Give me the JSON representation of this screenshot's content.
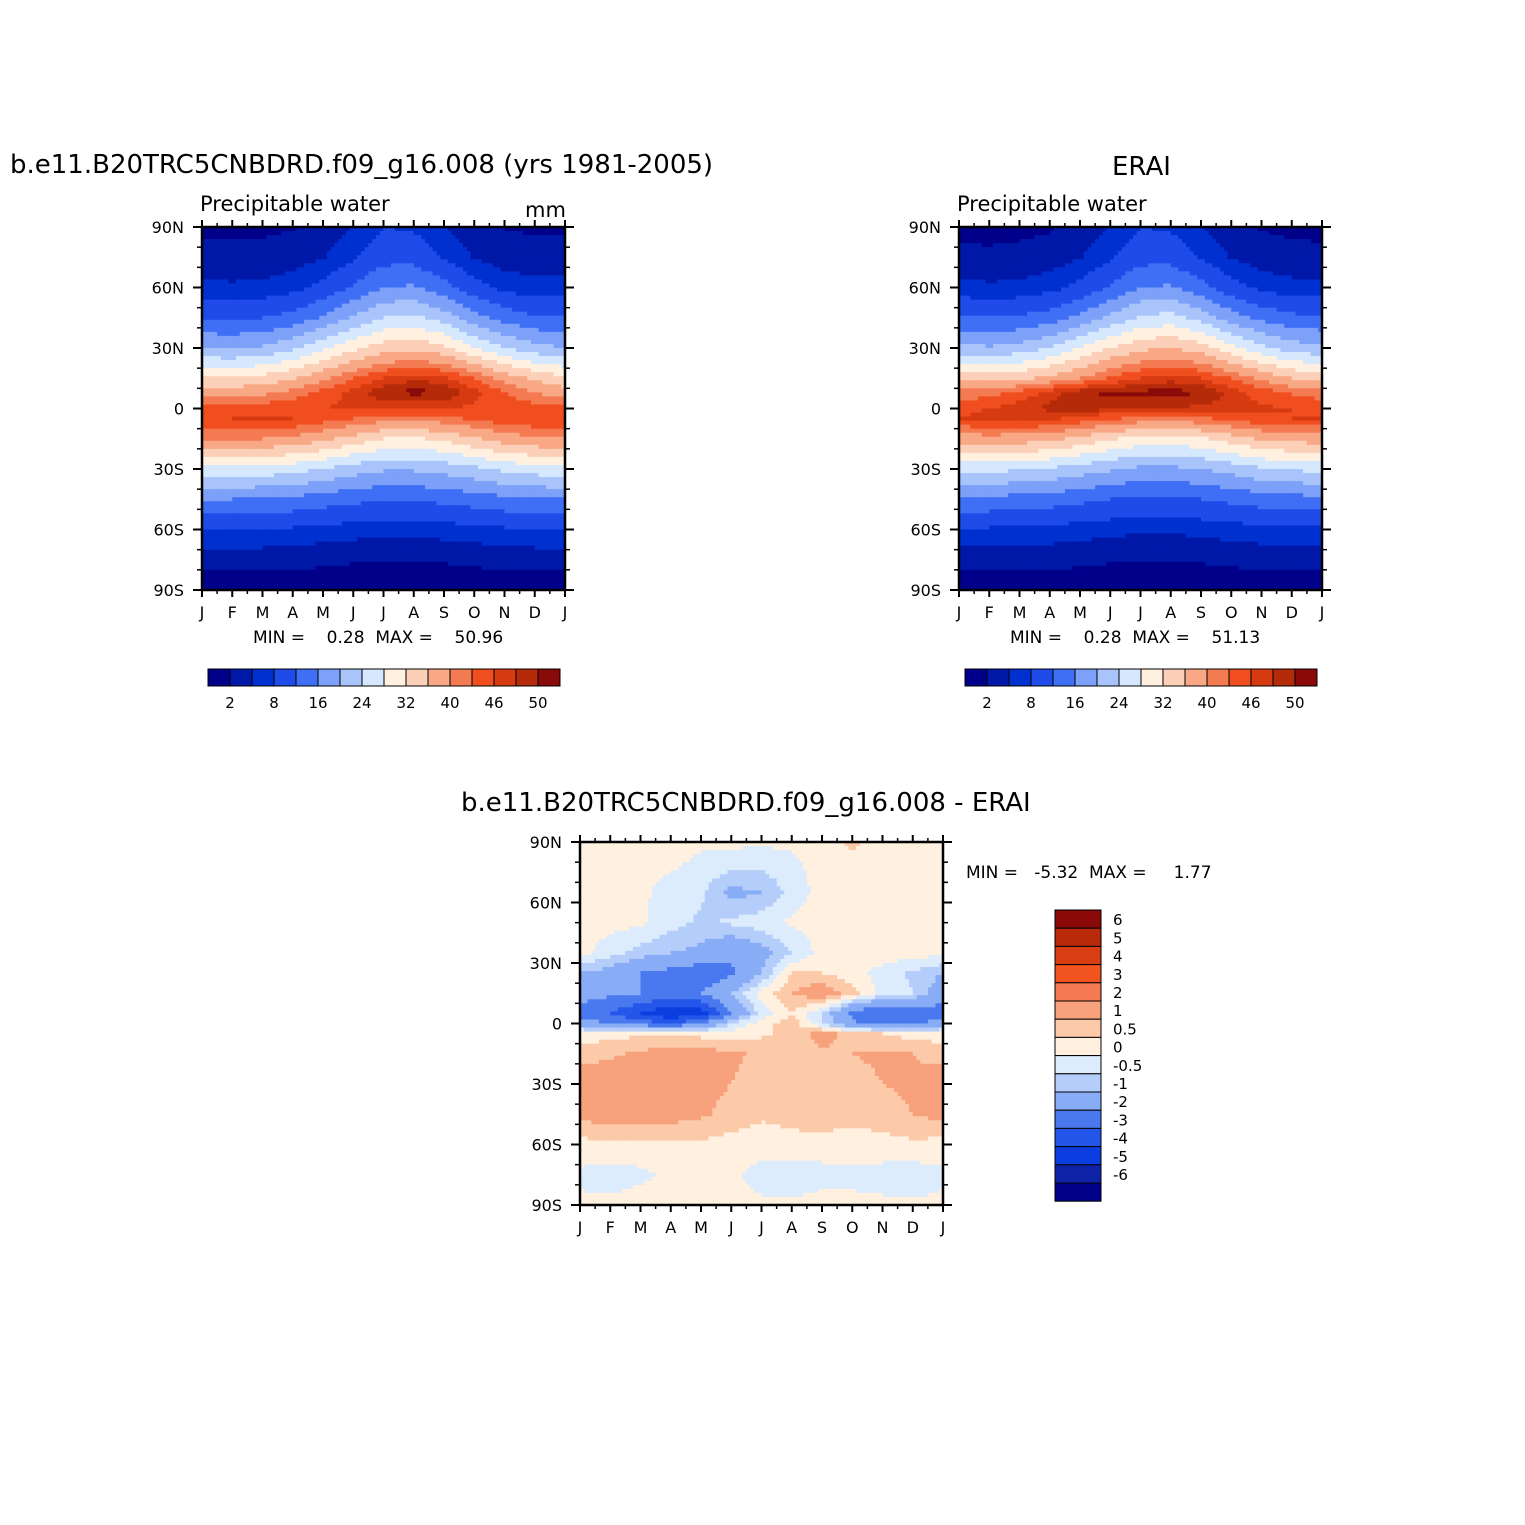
{
  "panels": {
    "model": {
      "title": "b.e11.B20TRC5CNBDRD.f09_g16.008 (yrs 1981-2005)",
      "left_label": "Precipitable  water",
      "right_label": "mm",
      "stats": "MIN =    0.28  MAX =    50.96"
    },
    "obs": {
      "title": "ERAI",
      "left_label": "Precipitable  water",
      "stats": "MIN =    0.28  MAX =    51.13"
    },
    "diff": {
      "title": "b.e11.B20TRC5CNBDRD.f09_g16.008 - ERAI",
      "stats": "MIN =   -5.32  MAX =     1.77"
    }
  },
  "chart_data": [
    {
      "type": "heatmap",
      "title": "b.e11.B20TRC5CNBDRD.f09_g16.008 (yrs 1981-2005)",
      "subtitle": "Precipitable  water",
      "units": "mm",
      "x_ticks": [
        "J",
        "F",
        "M",
        "A",
        "M",
        "J",
        "J",
        "A",
        "S",
        "O",
        "N",
        "D",
        "J"
      ],
      "y_ticks": [
        "90N",
        "60N",
        "30N",
        "0",
        "30S",
        "60S",
        "90S"
      ],
      "ylim": [
        -90,
        90
      ],
      "min": 0.28,
      "max": 50.96,
      "levels": [
        2,
        5,
        8,
        12,
        16,
        20,
        24,
        28,
        32,
        36,
        40,
        43,
        46,
        48,
        50
      ],
      "colorbar_labels": [
        "2",
        "8",
        "16",
        "24",
        "32",
        "40",
        "46",
        "50"
      ],
      "z_by_lat": [
        {
          "lat": -90,
          "values": [
            0.5,
            0.5,
            0.5,
            0.5,
            0.4,
            0.4,
            0.3,
            0.3,
            0.4,
            0.4,
            0.5,
            0.5,
            0.5
          ]
        },
        {
          "lat": -75,
          "values": [
            3,
            3,
            3,
            2.8,
            2.5,
            2.2,
            2,
            2,
            2.2,
            2.5,
            2.8,
            3,
            3
          ]
        },
        {
          "lat": -60,
          "values": [
            8,
            8,
            8,
            7.5,
            7,
            6.5,
            6,
            6,
            6.5,
            7,
            7.5,
            8,
            8
          ]
        },
        {
          "lat": -45,
          "values": [
            16,
            16,
            15.5,
            15,
            14,
            13,
            12.5,
            12.5,
            13,
            14,
            15,
            15.5,
            16
          ]
        },
        {
          "lat": -30,
          "values": [
            27,
            27,
            26.5,
            25.5,
            24,
            22,
            20.5,
            20.5,
            21.5,
            23,
            25,
            26,
            27
          ]
        },
        {
          "lat": -15,
          "values": [
            40,
            40.5,
            40,
            39,
            37,
            34.5,
            32,
            31.5,
            33,
            35.5,
            38,
            39.5,
            40
          ]
        },
        {
          "lat": -5,
          "values": [
            45.5,
            46,
            46.5,
            46,
            44.5,
            43,
            41.5,
            41,
            42,
            43.5,
            45,
            45.5,
            45.5
          ]
        },
        {
          "lat": 0,
          "values": [
            44,
            44.5,
            45,
            45.5,
            46,
            46.5,
            46.5,
            46,
            46,
            45.5,
            45,
            44.5,
            44
          ]
        },
        {
          "lat": 8,
          "values": [
            38,
            38,
            39,
            41,
            44,
            47,
            49.5,
            50.8,
            50,
            47,
            43,
            40,
            38
          ]
        },
        {
          "lat": 15,
          "values": [
            33,
            32.5,
            33.5,
            35.5,
            39,
            43,
            46,
            47.5,
            46.5,
            43,
            38.5,
            35,
            33
          ]
        },
        {
          "lat": 30,
          "values": [
            20,
            19.5,
            20.5,
            23,
            27,
            31,
            34,
            35,
            33,
            28,
            24,
            21.5,
            20
          ]
        },
        {
          "lat": 45,
          "values": [
            12,
            11.5,
            12,
            13.5,
            16.5,
            20.5,
            24,
            25,
            22,
            17.5,
            14.5,
            12.5,
            12
          ]
        },
        {
          "lat": 60,
          "values": [
            6,
            5.5,
            5.8,
            6.8,
            9,
            12.5,
            16,
            16.5,
            13.5,
            9.5,
            7,
            6,
            6
          ]
        },
        {
          "lat": 75,
          "values": [
            3,
            2.8,
            2.9,
            3.4,
            4.8,
            7.5,
            10.5,
            10.5,
            7.5,
            4.8,
            3.4,
            3,
            3
          ]
        },
        {
          "lat": 90,
          "values": [
            1.5,
            1.4,
            1.5,
            1.8,
            3,
            5,
            8,
            7.5,
            5,
            3,
            1.9,
            1.6,
            1.5
          ]
        }
      ]
    },
    {
      "type": "heatmap",
      "title": "ERAI",
      "subtitle": "Precipitable  water",
      "x_ticks": [
        "J",
        "F",
        "M",
        "A",
        "M",
        "J",
        "J",
        "A",
        "S",
        "O",
        "N",
        "D",
        "J"
      ],
      "y_ticks": [
        "90N",
        "60N",
        "30N",
        "0",
        "30S",
        "60S",
        "90S"
      ],
      "ylim": [
        -90,
        90
      ],
      "min": 0.28,
      "max": 51.13,
      "levels": [
        2,
        5,
        8,
        12,
        16,
        20,
        24,
        28,
        32,
        36,
        40,
        43,
        46,
        48,
        50
      ],
      "colorbar_labels": [
        "2",
        "8",
        "16",
        "24",
        "32",
        "40",
        "46",
        "50"
      ],
      "z_by_lat": [
        {
          "lat": -90,
          "values": [
            0.5,
            0.5,
            0.5,
            0.5,
            0.4,
            0.4,
            0.3,
            0.3,
            0.4,
            0.4,
            0.5,
            0.5,
            0.5
          ]
        },
        {
          "lat": -75,
          "values": [
            3,
            3,
            3,
            2.8,
            2.5,
            2.2,
            2,
            2,
            2.2,
            2.5,
            2.8,
            3,
            3
          ]
        },
        {
          "lat": -60,
          "values": [
            7.5,
            7.5,
            7.5,
            7,
            6.5,
            6,
            5.5,
            5.5,
            6,
            6.5,
            7,
            7.5,
            7.5
          ]
        },
        {
          "lat": -45,
          "values": [
            15,
            15,
            14.5,
            14,
            13,
            12,
            11.5,
            11.5,
            12,
            13,
            14,
            14.5,
            15
          ]
        },
        {
          "lat": -30,
          "values": [
            25,
            25,
            24.5,
            23.5,
            22,
            20.5,
            19,
            19,
            20,
            21.5,
            23.5,
            24.5,
            25
          ]
        },
        {
          "lat": -15,
          "values": [
            38,
            38.5,
            38,
            37,
            35,
            32.5,
            30.5,
            30,
            31.5,
            34,
            36.5,
            37.5,
            38
          ]
        },
        {
          "lat": -5,
          "values": [
            46,
            46.5,
            47,
            46.5,
            45,
            43.5,
            42,
            41.5,
            42.5,
            44,
            45.5,
            46,
            46
          ]
        },
        {
          "lat": 0,
          "values": [
            45.5,
            46,
            47.5,
            48.5,
            49,
            49,
            48.5,
            48,
            47.5,
            47,
            46.5,
            46,
            45.5
          ]
        },
        {
          "lat": 8,
          "values": [
            41,
            41.5,
            44,
            47,
            49.5,
            50.5,
            50.5,
            51,
            50,
            47.5,
            44.5,
            42.5,
            41
          ]
        },
        {
          "lat": 15,
          "values": [
            34,
            34,
            35,
            37,
            40,
            43.5,
            46,
            47,
            46,
            43,
            39,
            36,
            34
          ]
        },
        {
          "lat": 30,
          "values": [
            21,
            20.5,
            21.5,
            24,
            28,
            32,
            35,
            36,
            34,
            29,
            25,
            22,
            21
          ]
        },
        {
          "lat": 45,
          "values": [
            12.5,
            12,
            12.5,
            14,
            17,
            21,
            24.5,
            25.5,
            22.5,
            18,
            15,
            13,
            12.5
          ]
        },
        {
          "lat": 60,
          "values": [
            6,
            5.5,
            5.8,
            6.8,
            9,
            12.5,
            16,
            16.5,
            13.5,
            9.5,
            7,
            6,
            6
          ]
        },
        {
          "lat": 75,
          "values": [
            2.8,
            2.6,
            2.8,
            3.3,
            4.8,
            7.5,
            10.5,
            10.5,
            7.5,
            4.8,
            3.3,
            2.9,
            2.8
          ]
        },
        {
          "lat": 90,
          "values": [
            1.2,
            1,
            1.3,
            1.7,
            3,
            5,
            8,
            7.5,
            5,
            3,
            1.8,
            1.4,
            1.2
          ]
        }
      ]
    },
    {
      "type": "heatmap",
      "title": "b.e11.B20TRC5CNBDRD.f09_g16.008 - ERAI",
      "x_ticks": [
        "J",
        "F",
        "M",
        "A",
        "M",
        "J",
        "J",
        "A",
        "S",
        "O",
        "N",
        "D",
        "J"
      ],
      "y_ticks": [
        "90N",
        "60N",
        "30N",
        "0",
        "30S",
        "60S",
        "90S"
      ],
      "ylim": [
        -90,
        90
      ],
      "min": -5.32,
      "max": 1.77,
      "levels": [
        -6,
        -5,
        -4,
        -3,
        -2,
        -1,
        -0.5,
        0,
        0.5,
        1,
        2,
        3,
        4,
        5,
        6
      ],
      "colorbar_labels": [
        "6",
        "5",
        "4",
        "3",
        "2",
        "1",
        "0.5",
        "0",
        "-0.5",
        "-1",
        "-2",
        "-3",
        "-4",
        "-5",
        "-6"
      ],
      "z_by_lat": [
        {
          "lat": -90,
          "values": [
            0.1,
            0.1,
            0.2,
            0.1,
            0.1,
            0.2,
            0.1,
            0.1,
            0.2,
            0.1,
            0.1,
            0.1,
            0.1
          ]
        },
        {
          "lat": -75,
          "values": [
            -0.1,
            -0.2,
            -0.1,
            0.1,
            0.2,
            0.1,
            -0.2,
            -0.3,
            -0.2,
            -0.1,
            -0.2,
            -0.3,
            -0.1
          ]
        },
        {
          "lat": -60,
          "values": [
            0.3,
            0.4,
            0.3,
            0.3,
            0.4,
            0.3,
            0.2,
            0.3,
            0.3,
            0.2,
            0.3,
            0.4,
            0.3
          ]
        },
        {
          "lat": -45,
          "values": [
            1.2,
            1.3,
            1.4,
            1.3,
            1.1,
            0.8,
            0.6,
            0.7,
            0.8,
            0.7,
            0.8,
            1,
            1.2
          ]
        },
        {
          "lat": -30,
          "values": [
            1.3,
            1.4,
            1.5,
            1.3,
            1.2,
            1,
            0.8,
            0.6,
            0.7,
            0.8,
            1,
            1.1,
            1.3
          ]
        },
        {
          "lat": -15,
          "values": [
            0.8,
            0.9,
            1.1,
            1.3,
            1.3,
            1.1,
            0.9,
            0.8,
            0.9,
            1,
            1.1,
            1,
            0.8
          ]
        },
        {
          "lat": -5,
          "values": [
            0.2,
            0.3,
            0.4,
            0.4,
            0.3,
            0.2,
            0.4,
            0.7,
            1.2,
            0.8,
            0.5,
            0.3,
            0.2
          ]
        },
        {
          "lat": 0,
          "values": [
            -1.5,
            -2,
            -2.5,
            -3,
            -2,
            -0.5,
            0.3,
            0.8,
            -0.5,
            -1.8,
            -2.5,
            -2.2,
            -1.5
          ]
        },
        {
          "lat": 5,
          "values": [
            -2.5,
            -3,
            -4,
            -5,
            -4.5,
            -2,
            -0.3,
            0.5,
            -0.5,
            -2.3,
            -3,
            -2.5,
            -2.5
          ]
        },
        {
          "lat": 15,
          "values": [
            -1.5,
            -1.8,
            -2,
            -2.2,
            -2,
            -1,
            0.2,
            1,
            1.5,
            0.7,
            -0.2,
            -0.5,
            -1.5
          ]
        },
        {
          "lat": 25,
          "values": [
            -1,
            -1.3,
            -2,
            -2.3,
            -2.7,
            -2.2,
            -1,
            0.5,
            0.5,
            0.2,
            -0.2,
            -0.6,
            -1
          ]
        },
        {
          "lat": 35,
          "values": [
            0.2,
            -0.3,
            -0.7,
            -1,
            -1.2,
            -1.8,
            -1.3,
            -0.5,
            0.2,
            0.3,
            0.3,
            0.2,
            0.2
          ]
        },
        {
          "lat": 50,
          "values": [
            0.2,
            0.2,
            0.1,
            -0.3,
            -0.6,
            -0.4,
            -0.2,
            0.1,
            0.2,
            0.2,
            0.2,
            0.2,
            0.2
          ]
        },
        {
          "lat": 65,
          "values": [
            0.2,
            0.2,
            0.1,
            -0.2,
            -0.4,
            -1.2,
            -1,
            -0.3,
            0.2,
            0.2,
            0.2,
            0.2,
            0.2
          ]
        },
        {
          "lat": 80,
          "values": [
            0.2,
            0.2,
            0.2,
            0.1,
            -0.1,
            -0.2,
            -0.3,
            -0.1,
            0.2,
            0.4,
            0.2,
            0.2,
            0.2
          ]
        },
        {
          "lat": 90,
          "values": [
            0.2,
            0.2,
            0.2,
            0.2,
            0.1,
            0.1,
            0.1,
            0.1,
            0.3,
            0.6,
            0.3,
            0.2,
            0.2
          ]
        }
      ]
    }
  ],
  "colors": {
    "abs_palette": [
      "#00008b",
      "#0018a8",
      "#0030d0",
      "#1f4be8",
      "#3f6ff5",
      "#7da0f8",
      "#a9c4fb",
      "#d6e8fd",
      "#fff0e0",
      "#fcd0b8",
      "#f8a884",
      "#f47a52",
      "#f04e1e",
      "#d63a10",
      "#b52a08",
      "#8a0a0a"
    ],
    "diff_palette": [
      "#00008b",
      "#0f23a8",
      "#0a3ee0",
      "#2456ea",
      "#4a78ee",
      "#88acf6",
      "#b4cdfa",
      "#dcecfc",
      "#fff0e0",
      "#fccaa8",
      "#f7a27c",
      "#f47a52",
      "#f2541f",
      "#d93e12",
      "#b82a0a",
      "#8a0a0a"
    ]
  }
}
